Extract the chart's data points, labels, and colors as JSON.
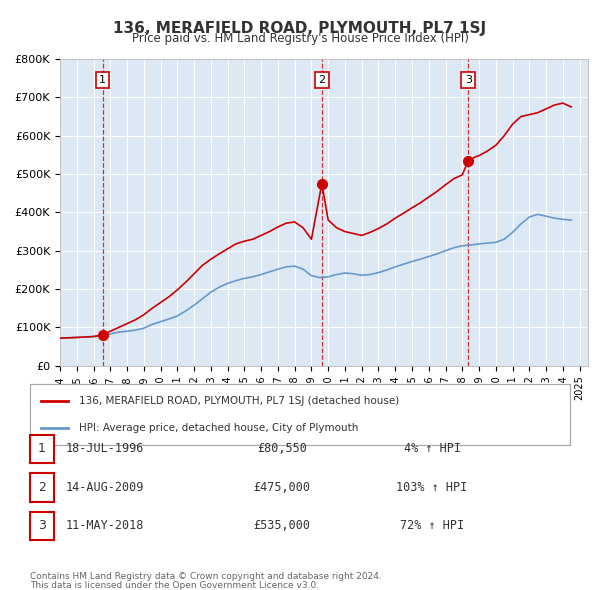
{
  "title": "136, MERAFIELD ROAD, PLYMOUTH, PL7 1SJ",
  "subtitle": "Price paid vs. HM Land Registry's House Price Index (HPI)",
  "background_color": "#ffffff",
  "plot_bg_color": "#dce9f5",
  "grid_color": "#ffffff",
  "ylim": [
    0,
    800000
  ],
  "xlim_start": 1994.0,
  "xlim_end": 2025.5,
  "ytick_labels": [
    "£0",
    "£100K",
    "£200K",
    "£300K",
    "£400K",
    "£500K",
    "£600K",
    "£700K",
    "£800K"
  ],
  "ytick_values": [
    0,
    100000,
    200000,
    300000,
    400000,
    500000,
    600000,
    700000,
    800000
  ],
  "xtick_years": [
    1994,
    1995,
    1996,
    1997,
    1998,
    1999,
    2000,
    2001,
    2002,
    2003,
    2004,
    2005,
    2006,
    2007,
    2008,
    2009,
    2010,
    2011,
    2012,
    2013,
    2014,
    2015,
    2016,
    2017,
    2018,
    2019,
    2020,
    2021,
    2022,
    2023,
    2024,
    2025
  ],
  "sale_line_color": "#cc0000",
  "hpi_line_color": "#6699cc",
  "sale_dot_color": "#cc0000",
  "marker_label_bg": "#ffffff",
  "marker_label_border": "#cc0000",
  "legend_label_sale": "136, MERAFIELD ROAD, PLYMOUTH, PL7 1SJ (detached house)",
  "legend_label_hpi": "HPI: Average price, detached house, City of Plymouth",
  "transactions": [
    {
      "num": 1,
      "date": "18-JUL-1996",
      "year": 1996.54,
      "price": 80550,
      "pct": "4%",
      "dir": "↑"
    },
    {
      "num": 2,
      "date": "14-AUG-2009",
      "year": 2009.62,
      "price": 475000,
      "pct": "103%",
      "dir": "↑"
    },
    {
      "num": 3,
      "date": "11-MAY-2018",
      "year": 2018.36,
      "price": 535000,
      "pct": "72%",
      "dir": "↑"
    }
  ],
  "footnote1": "Contains HM Land Registry data © Crown copyright and database right 2024.",
  "footnote2": "This data is licensed under the Open Government Licence v3.0.",
  "hpi_data_x": [
    1994.0,
    1994.5,
    1995.0,
    1995.5,
    1996.0,
    1996.5,
    1997.0,
    1997.5,
    1998.0,
    1998.5,
    1999.0,
    1999.5,
    2000.0,
    2000.5,
    2001.0,
    2001.5,
    2002.0,
    2002.5,
    2003.0,
    2003.5,
    2004.0,
    2004.5,
    2005.0,
    2005.5,
    2006.0,
    2006.5,
    2007.0,
    2007.5,
    2008.0,
    2008.5,
    2009.0,
    2009.5,
    2010.0,
    2010.5,
    2011.0,
    2011.5,
    2012.0,
    2012.5,
    2013.0,
    2013.5,
    2014.0,
    2014.5,
    2015.0,
    2015.5,
    2016.0,
    2016.5,
    2017.0,
    2017.5,
    2018.0,
    2018.5,
    2019.0,
    2019.5,
    2020.0,
    2020.5,
    2021.0,
    2021.5,
    2022.0,
    2022.5,
    2023.0,
    2023.5,
    2024.0,
    2024.5
  ],
  "hpi_data_y": [
    72000,
    73000,
    74000,
    75000,
    76000,
    78000,
    83000,
    88000,
    90000,
    93000,
    98000,
    108000,
    115000,
    122000,
    130000,
    143000,
    158000,
    175000,
    192000,
    205000,
    215000,
    222000,
    228000,
    232000,
    238000,
    245000,
    252000,
    258000,
    260000,
    252000,
    235000,
    230000,
    232000,
    238000,
    242000,
    240000,
    236000,
    238000,
    243000,
    250000,
    258000,
    265000,
    272000,
    278000,
    285000,
    292000,
    300000,
    308000,
    313000,
    315000,
    318000,
    320000,
    322000,
    330000,
    348000,
    370000,
    388000,
    395000,
    390000,
    385000,
    382000,
    380000
  ],
  "sale_line_x": [
    1994.0,
    1994.5,
    1995.0,
    1995.5,
    1996.0,
    1996.54,
    1997.0,
    1997.5,
    1998.0,
    1998.5,
    1999.0,
    1999.5,
    2000.0,
    2000.5,
    2001.0,
    2001.5,
    2002.0,
    2002.5,
    2003.0,
    2003.5,
    2004.0,
    2004.5,
    2005.0,
    2005.5,
    2006.0,
    2006.5,
    2007.0,
    2007.5,
    2008.0,
    2008.5,
    2009.0,
    2009.62,
    2010.0,
    2010.5,
    2011.0,
    2011.5,
    2012.0,
    2012.5,
    2013.0,
    2013.5,
    2014.0,
    2014.5,
    2015.0,
    2015.5,
    2016.0,
    2016.5,
    2017.0,
    2017.5,
    2018.0,
    2018.36,
    2018.8,
    2019.0,
    2019.5,
    2020.0,
    2020.5,
    2021.0,
    2021.5,
    2022.0,
    2022.5,
    2023.0,
    2023.5,
    2024.0,
    2024.5
  ],
  "sale_line_y": [
    72000,
    73000,
    74000,
    75000,
    76500,
    80550,
    90000,
    100000,
    110000,
    120000,
    133000,
    150000,
    165000,
    180000,
    198000,
    218000,
    240000,
    262000,
    278000,
    292000,
    305000,
    318000,
    325000,
    330000,
    340000,
    350000,
    362000,
    372000,
    375000,
    360000,
    330000,
    475000,
    380000,
    360000,
    350000,
    345000,
    340000,
    348000,
    358000,
    370000,
    385000,
    398000,
    412000,
    425000,
    440000,
    455000,
    472000,
    488000,
    498000,
    535000,
    545000,
    548000,
    560000,
    575000,
    600000,
    630000,
    650000,
    655000,
    660000,
    670000,
    680000,
    685000,
    675000
  ]
}
